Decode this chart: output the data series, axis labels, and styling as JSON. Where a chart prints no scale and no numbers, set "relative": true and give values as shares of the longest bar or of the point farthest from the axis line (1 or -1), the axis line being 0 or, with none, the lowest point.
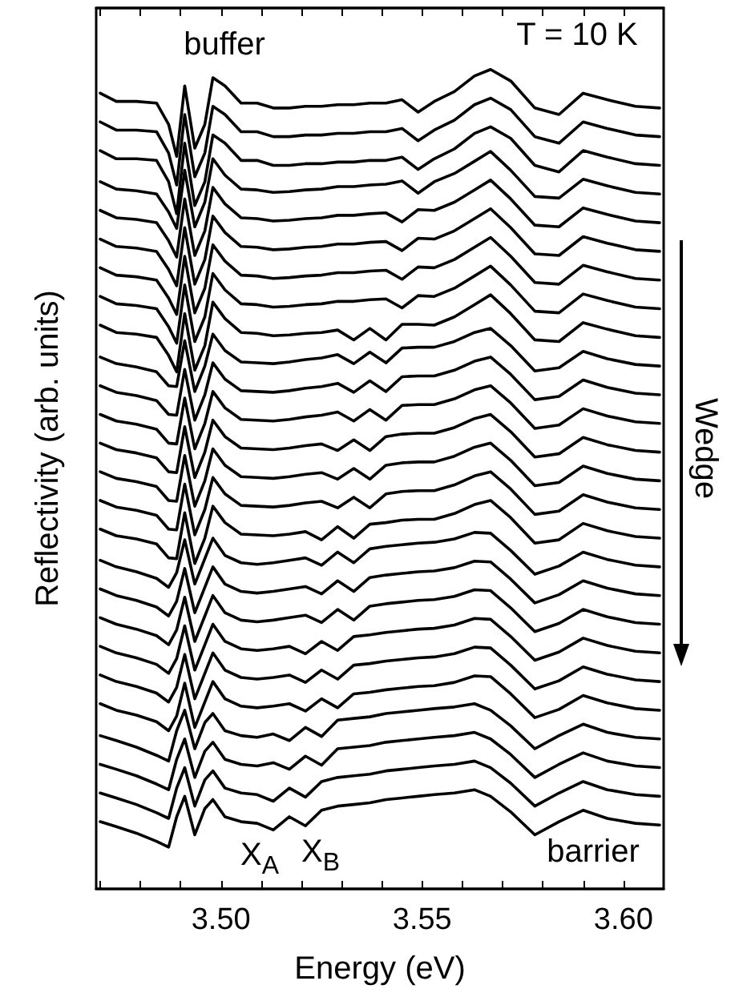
{
  "chart_data": {
    "type": "line",
    "relative": true,
    "xlabel": "Energy (eV)",
    "ylabel": "Reflectivity (arb. units)",
    "annotations": [
      "buffer",
      "T = 10 K",
      "X$_{A}$",
      "X$_{B}$",
      "barrier",
      "Wedge"
    ],
    "xlim": [
      3.469,
      3.61
    ],
    "xticks": [
      {
        "value": 3.47,
        "label": null
      },
      {
        "value": 3.48,
        "label": null
      },
      {
        "value": 3.49,
        "label": null
      },
      {
        "value": 3.5,
        "label": "3.50"
      },
      {
        "value": 3.51,
        "label": null
      },
      {
        "value": 3.52,
        "label": null
      },
      {
        "value": 3.53,
        "label": null
      },
      {
        "value": 3.54,
        "label": null
      },
      {
        "value": 3.55,
        "label": "3.55"
      },
      {
        "value": 3.56,
        "label": null
      },
      {
        "value": 3.57,
        "label": null
      },
      {
        "value": 3.58,
        "label": null
      },
      {
        "value": 3.59,
        "label": null
      },
      {
        "value": 3.6,
        "label": "3.60"
      }
    ],
    "grid": false,
    "marker": "none",
    "line_style": "solid",
    "x": [
      3.47,
      3.474,
      3.479,
      3.484,
      3.487,
      3.489,
      3.491,
      3.4935,
      3.496,
      3.498,
      3.501,
      3.505,
      3.509,
      3.513,
      3.517,
      3.521,
      3.525,
      3.529,
      3.533,
      3.537,
      3.541,
      3.545,
      3.549,
      3.553,
      3.558,
      3.563,
      3.567,
      3.572,
      3.578,
      3.584,
      3.59,
      3.596,
      3.603,
      3.609
    ],
    "series": [
      {
        "color": "#000000",
        "values": [
          0.971,
          0.961,
          0.961,
          0.959,
          0.933,
          0.894,
          0.98,
          0.904,
          0.933,
          0.99,
          0.98,
          0.959,
          0.959,
          0.953,
          0.953,
          0.955,
          0.955,
          0.957,
          0.957,
          0.959,
          0.959,
          0.963,
          0.948,
          0.961,
          0.973,
          0.992,
          1,
          0.986,
          0.953,
          0.945,
          0.971,
          0.963,
          0.955,
          0.953
        ]
      },
      {
        "color": "#000000",
        "values": [
          0.936,
          0.926,
          0.926,
          0.924,
          0.898,
          0.859,
          0.945,
          0.869,
          0.898,
          0.955,
          0.945,
          0.924,
          0.924,
          0.918,
          0.918,
          0.92,
          0.92,
          0.922,
          0.922,
          0.924,
          0.924,
          0.928,
          0.913,
          0.926,
          0.938,
          0.957,
          0.965,
          0.951,
          0.918,
          0.91,
          0.936,
          0.928,
          0.92,
          0.918
        ]
      },
      {
        "color": "#000000",
        "values": [
          0.901,
          0.891,
          0.891,
          0.889,
          0.863,
          0.824,
          0.91,
          0.834,
          0.863,
          0.92,
          0.91,
          0.889,
          0.889,
          0.883,
          0.883,
          0.885,
          0.885,
          0.887,
          0.887,
          0.889,
          0.889,
          0.893,
          0.878,
          0.891,
          0.903,
          0.922,
          0.93,
          0.916,
          0.883,
          0.875,
          0.901,
          0.893,
          0.885,
          0.883
        ]
      },
      {
        "color": "#000000",
        "values": [
          0.863,
          0.854,
          0.852,
          0.848,
          0.826,
          0.806,
          0.877,
          0.808,
          0.838,
          0.891,
          0.871,
          0.854,
          0.853,
          0.85,
          0.851,
          0.853,
          0.854,
          0.857,
          0.857,
          0.859,
          0.86,
          0.864,
          0.849,
          0.863,
          0.873,
          0.888,
          0.9,
          0.877,
          0.845,
          0.843,
          0.866,
          0.858,
          0.85,
          0.848
        ]
      },
      {
        "color": "#000000",
        "values": [
          0.828,
          0.819,
          0.817,
          0.813,
          0.791,
          0.771,
          0.842,
          0.773,
          0.803,
          0.856,
          0.836,
          0.819,
          0.818,
          0.815,
          0.816,
          0.818,
          0.819,
          0.822,
          0.822,
          0.824,
          0.825,
          0.814,
          0.829,
          0.828,
          0.838,
          0.853,
          0.865,
          0.842,
          0.81,
          0.808,
          0.831,
          0.823,
          0.815,
          0.813
        ]
      },
      {
        "color": "#000000",
        "values": [
          0.793,
          0.784,
          0.782,
          0.778,
          0.756,
          0.736,
          0.807,
          0.738,
          0.768,
          0.821,
          0.801,
          0.784,
          0.783,
          0.78,
          0.781,
          0.783,
          0.784,
          0.787,
          0.787,
          0.789,
          0.79,
          0.779,
          0.794,
          0.793,
          0.803,
          0.818,
          0.83,
          0.807,
          0.775,
          0.773,
          0.796,
          0.788,
          0.78,
          0.778
        ]
      },
      {
        "color": "#000000",
        "values": [
          0.758,
          0.749,
          0.747,
          0.743,
          0.721,
          0.701,
          0.772,
          0.703,
          0.733,
          0.786,
          0.766,
          0.749,
          0.748,
          0.745,
          0.746,
          0.748,
          0.749,
          0.752,
          0.752,
          0.754,
          0.755,
          0.744,
          0.759,
          0.758,
          0.768,
          0.783,
          0.795,
          0.772,
          0.74,
          0.738,
          0.761,
          0.753,
          0.745,
          0.743
        ]
      },
      {
        "color": "#000000",
        "values": [
          0.723,
          0.714,
          0.712,
          0.708,
          0.686,
          0.666,
          0.737,
          0.668,
          0.698,
          0.751,
          0.731,
          0.714,
          0.713,
          0.71,
          0.711,
          0.713,
          0.714,
          0.717,
          0.717,
          0.719,
          0.72,
          0.709,
          0.724,
          0.723,
          0.733,
          0.748,
          0.76,
          0.737,
          0.705,
          0.703,
          0.726,
          0.718,
          0.71,
          0.708
        ]
      },
      {
        "color": "#000000",
        "values": [
          0.688,
          0.679,
          0.677,
          0.673,
          0.651,
          0.631,
          0.702,
          0.633,
          0.663,
          0.716,
          0.696,
          0.679,
          0.678,
          0.675,
          0.676,
          0.678,
          0.679,
          0.682,
          0.67,
          0.684,
          0.67,
          0.689,
          0.689,
          0.688,
          0.698,
          0.713,
          0.725,
          0.702,
          0.67,
          0.668,
          0.691,
          0.683,
          0.675,
          0.673
        ]
      },
      {
        "color": "#000000",
        "values": [
          0.649,
          0.641,
          0.637,
          0.631,
          0.614,
          0.613,
          0.669,
          0.607,
          0.638,
          0.677,
          0.657,
          0.643,
          0.642,
          0.641,
          0.643,
          0.646,
          0.648,
          0.652,
          0.641,
          0.655,
          0.642,
          0.66,
          0.661,
          0.661,
          0.668,
          0.679,
          0.684,
          0.663,
          0.632,
          0.636,
          0.656,
          0.647,
          0.64,
          0.638
        ]
      },
      {
        "color": "#000000",
        "values": [
          0.614,
          0.606,
          0.602,
          0.596,
          0.579,
          0.578,
          0.634,
          0.572,
          0.603,
          0.642,
          0.622,
          0.608,
          0.607,
          0.606,
          0.608,
          0.611,
          0.613,
          0.617,
          0.606,
          0.62,
          0.607,
          0.625,
          0.626,
          0.626,
          0.633,
          0.644,
          0.649,
          0.628,
          0.597,
          0.601,
          0.621,
          0.612,
          0.605,
          0.603
        ]
      },
      {
        "color": "#000000",
        "values": [
          0.579,
          0.571,
          0.567,
          0.561,
          0.544,
          0.543,
          0.599,
          0.537,
          0.568,
          0.607,
          0.587,
          0.573,
          0.572,
          0.571,
          0.573,
          0.576,
          0.578,
          0.582,
          0.571,
          0.585,
          0.572,
          0.59,
          0.591,
          0.591,
          0.598,
          0.609,
          0.614,
          0.593,
          0.562,
          0.566,
          0.586,
          0.577,
          0.57,
          0.568
        ]
      },
      {
        "color": "#000000",
        "values": [
          0.544,
          0.536,
          0.532,
          0.526,
          0.509,
          0.508,
          0.564,
          0.502,
          0.533,
          0.572,
          0.552,
          0.538,
          0.537,
          0.536,
          0.538,
          0.541,
          0.543,
          0.535,
          0.548,
          0.535,
          0.552,
          0.555,
          0.556,
          0.556,
          0.563,
          0.574,
          0.579,
          0.558,
          0.527,
          0.531,
          0.551,
          0.542,
          0.535,
          0.533
        ]
      },
      {
        "color": "#000000",
        "values": [
          0.509,
          0.501,
          0.497,
          0.491,
          0.474,
          0.473,
          0.529,
          0.467,
          0.498,
          0.537,
          0.517,
          0.503,
          0.502,
          0.501,
          0.503,
          0.506,
          0.508,
          0.5,
          0.513,
          0.5,
          0.517,
          0.52,
          0.521,
          0.521,
          0.528,
          0.539,
          0.544,
          0.523,
          0.492,
          0.496,
          0.516,
          0.507,
          0.5,
          0.498
        ]
      },
      {
        "color": "#000000",
        "values": [
          0.474,
          0.466,
          0.462,
          0.456,
          0.439,
          0.438,
          0.494,
          0.432,
          0.463,
          0.502,
          0.482,
          0.468,
          0.467,
          0.466,
          0.468,
          0.471,
          0.473,
          0.465,
          0.478,
          0.465,
          0.482,
          0.485,
          0.486,
          0.486,
          0.493,
          0.504,
          0.509,
          0.488,
          0.457,
          0.461,
          0.481,
          0.472,
          0.465,
          0.463
        ]
      },
      {
        "color": "#000000",
        "values": [
          0.439,
          0.431,
          0.427,
          0.421,
          0.404,
          0.403,
          0.459,
          0.397,
          0.428,
          0.467,
          0.447,
          0.433,
          0.432,
          0.431,
          0.433,
          0.436,
          0.426,
          0.442,
          0.428,
          0.445,
          0.447,
          0.45,
          0.451,
          0.451,
          0.458,
          0.469,
          0.474,
          0.453,
          0.422,
          0.426,
          0.446,
          0.437,
          0.43,
          0.428
        ]
      },
      {
        "color": "#000000",
        "values": [
          0.401,
          0.393,
          0.387,
          0.379,
          0.368,
          0.386,
          0.426,
          0.372,
          0.403,
          0.428,
          0.407,
          0.398,
          0.396,
          0.398,
          0.401,
          0.404,
          0.395,
          0.411,
          0.398,
          0.415,
          0.418,
          0.42,
          0.422,
          0.423,
          0.427,
          0.435,
          0.434,
          0.413,
          0.384,
          0.394,
          0.411,
          0.402,
          0.395,
          0.393
        ]
      },
      {
        "color": "#000000",
        "values": [
          0.366,
          0.358,
          0.352,
          0.344,
          0.333,
          0.351,
          0.391,
          0.337,
          0.368,
          0.393,
          0.372,
          0.363,
          0.361,
          0.363,
          0.366,
          0.369,
          0.36,
          0.376,
          0.363,
          0.38,
          0.383,
          0.385,
          0.387,
          0.388,
          0.392,
          0.4,
          0.399,
          0.378,
          0.349,
          0.359,
          0.376,
          0.367,
          0.36,
          0.358
        ]
      },
      {
        "color": "#000000",
        "values": [
          0.331,
          0.323,
          0.317,
          0.309,
          0.298,
          0.316,
          0.356,
          0.302,
          0.333,
          0.358,
          0.337,
          0.328,
          0.326,
          0.328,
          0.331,
          0.334,
          0.325,
          0.341,
          0.328,
          0.345,
          0.348,
          0.35,
          0.352,
          0.353,
          0.357,
          0.365,
          0.364,
          0.343,
          0.314,
          0.324,
          0.341,
          0.332,
          0.325,
          0.323
        ]
      },
      {
        "color": "#000000",
        "values": [
          0.296,
          0.288,
          0.282,
          0.274,
          0.263,
          0.281,
          0.321,
          0.267,
          0.298,
          0.323,
          0.302,
          0.293,
          0.291,
          0.293,
          0.296,
          0.287,
          0.302,
          0.291,
          0.308,
          0.31,
          0.313,
          0.315,
          0.317,
          0.318,
          0.322,
          0.33,
          0.329,
          0.308,
          0.279,
          0.289,
          0.306,
          0.297,
          0.29,
          0.288
        ]
      },
      {
        "color": "#000000",
        "values": [
          0.261,
          0.253,
          0.247,
          0.239,
          0.228,
          0.246,
          0.286,
          0.232,
          0.263,
          0.288,
          0.267,
          0.258,
          0.256,
          0.258,
          0.261,
          0.252,
          0.267,
          0.256,
          0.273,
          0.275,
          0.278,
          0.28,
          0.282,
          0.283,
          0.287,
          0.295,
          0.294,
          0.273,
          0.244,
          0.254,
          0.271,
          0.262,
          0.255,
          0.253
        ]
      },
      {
        "color": "#000000",
        "values": [
          0.226,
          0.218,
          0.212,
          0.204,
          0.193,
          0.211,
          0.251,
          0.197,
          0.228,
          0.253,
          0.232,
          0.223,
          0.221,
          0.223,
          0.226,
          0.217,
          0.232,
          0.221,
          0.238,
          0.24,
          0.243,
          0.245,
          0.247,
          0.248,
          0.252,
          0.26,
          0.259,
          0.238,
          0.209,
          0.219,
          0.236,
          0.227,
          0.22,
          0.218
        ]
      },
      {
        "color": "#000000",
        "values": [
          0.187,
          0.181,
          0.173,
          0.163,
          0.156,
          0.193,
          0.218,
          0.171,
          0.203,
          0.214,
          0.193,
          0.187,
          0.185,
          0.189,
          0.181,
          0.197,
          0.186,
          0.206,
          0.208,
          0.21,
          0.214,
          0.216,
          0.218,
          0.22,
          0.222,
          0.226,
          0.218,
          0.199,
          0.171,
          0.187,
          0.201,
          0.191,
          0.185,
          0.183
        ]
      },
      {
        "color": "#000000",
        "values": [
          0.152,
          0.146,
          0.138,
          0.128,
          0.121,
          0.158,
          0.183,
          0.136,
          0.168,
          0.179,
          0.158,
          0.152,
          0.15,
          0.154,
          0.146,
          0.162,
          0.151,
          0.171,
          0.173,
          0.175,
          0.179,
          0.181,
          0.183,
          0.185,
          0.187,
          0.191,
          0.183,
          0.164,
          0.136,
          0.152,
          0.166,
          0.156,
          0.15,
          0.148
        ]
      },
      {
        "color": "#000000",
        "values": [
          0.117,
          0.111,
          0.103,
          0.093,
          0.086,
          0.123,
          0.148,
          0.101,
          0.133,
          0.144,
          0.123,
          0.117,
          0.115,
          0.107,
          0.123,
          0.112,
          0.131,
          0.136,
          0.138,
          0.14,
          0.144,
          0.146,
          0.148,
          0.15,
          0.152,
          0.156,
          0.148,
          0.129,
          0.101,
          0.117,
          0.131,
          0.121,
          0.115,
          0.113
        ]
      },
      {
        "color": "#000000",
        "values": [
          0.082,
          0.076,
          0.068,
          0.058,
          0.051,
          0.088,
          0.113,
          0.066,
          0.098,
          0.109,
          0.088,
          0.082,
          0.08,
          0.072,
          0.088,
          0.077,
          0.096,
          0.101,
          0.103,
          0.105,
          0.109,
          0.111,
          0.113,
          0.115,
          0.117,
          0.121,
          0.113,
          0.094,
          0.066,
          0.082,
          0.096,
          0.086,
          0.08,
          0.078
        ]
      }
    ]
  }
}
